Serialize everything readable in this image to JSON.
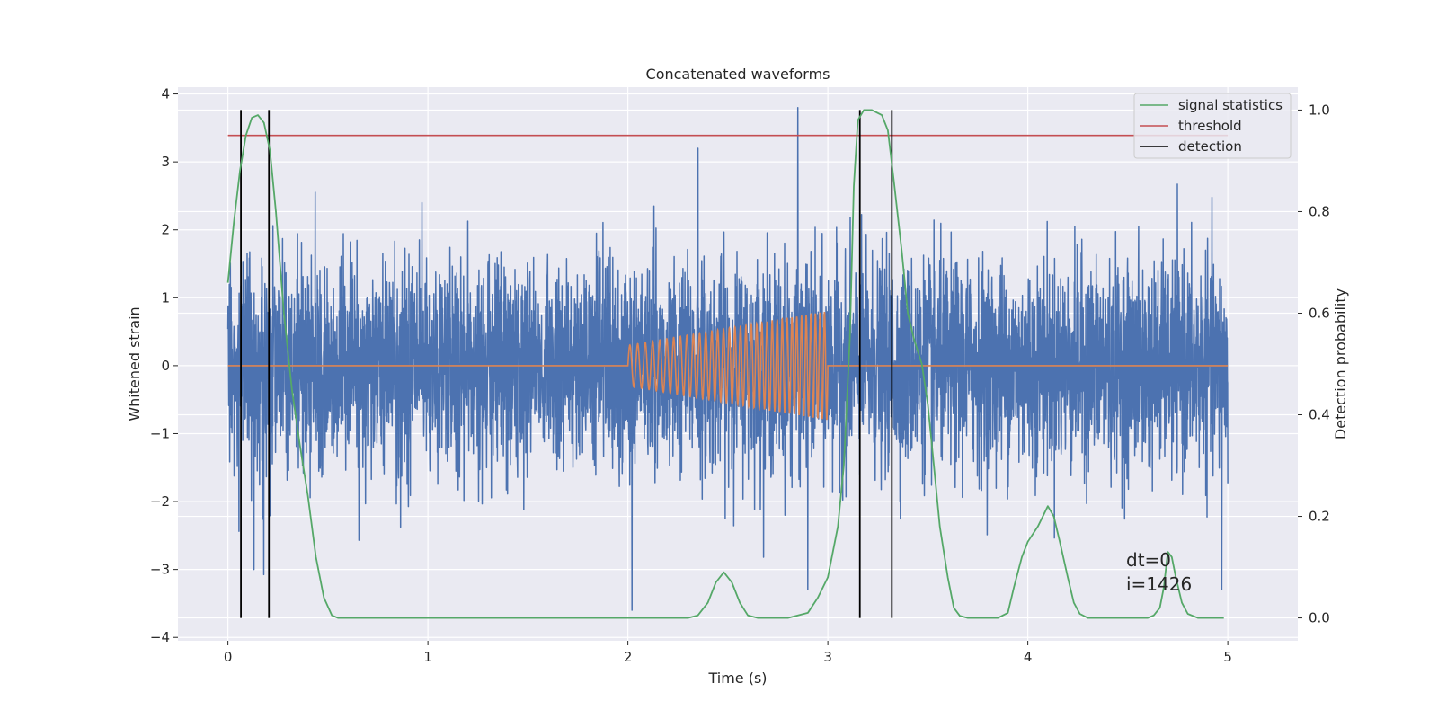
{
  "chart_data": {
    "type": "line",
    "title": "Concatenated waveforms",
    "xlabel": "Time (s)",
    "ylabel": "Whitened strain",
    "ylabel_right": "Detection probability",
    "xlim": [
      -0.25,
      5.35
    ],
    "ylim": [
      -4.05,
      4.1
    ],
    "ylim_right": [
      -0.045,
      1.045
    ],
    "x_ticks": [
      0,
      1,
      2,
      3,
      4,
      5
    ],
    "y_ticks": [
      -4,
      -3,
      -2,
      -1,
      0,
      1,
      2,
      3,
      4
    ],
    "y_ticks_right": [
      0.0,
      0.2,
      0.4,
      0.6,
      0.8,
      1.0
    ],
    "grid": true,
    "legend_position": "top-right",
    "colors": {
      "strain": "#4c72b0",
      "injection": "#dd8452",
      "signal_statistics": "#55a868",
      "threshold": "#c44e52",
      "detection": "#000000",
      "background": "#eaeaf2",
      "grid": "#ffffff"
    },
    "series": [
      {
        "name": "",
        "kind": "strain",
        "axis": "left",
        "x_range": [
          0,
          5
        ],
        "approx_amplitude_std": 0.75,
        "approx_peaks": [
          [
            0.13,
            -3.0
          ],
          [
            2.02,
            -3.6
          ],
          [
            2.13,
            2.35
          ],
          [
            2.35,
            3.2
          ],
          [
            2.85,
            3.8
          ],
          [
            2.9,
            -3.3
          ],
          [
            4.97,
            -3.3
          ]
        ]
      },
      {
        "name": "",
        "kind": "injection",
        "axis": "left",
        "x_range": [
          2.0,
          3.0
        ],
        "start_amplitude": 0.3,
        "end_amplitude": 0.8,
        "start_frequency_hz": 25,
        "end_frequency_hz": 45
      },
      {
        "name": "signal statistics",
        "kind": "detection_statistic",
        "axis": "right",
        "x": [
          0.0,
          0.03,
          0.06,
          0.09,
          0.12,
          0.15,
          0.18,
          0.21,
          0.24,
          0.28,
          0.32,
          0.36,
          0.4,
          0.44,
          0.48,
          0.52,
          0.55,
          0.6,
          0.8,
          1.0,
          1.5,
          2.0,
          2.3,
          2.35,
          2.4,
          2.44,
          2.48,
          2.52,
          2.56,
          2.6,
          2.65,
          2.8,
          2.9,
          2.95,
          3.0,
          3.05,
          3.08,
          3.11,
          3.13,
          3.15,
          3.18,
          3.22,
          3.27,
          3.3,
          3.33,
          3.37,
          3.4,
          3.43,
          3.47,
          3.5,
          3.53,
          3.56,
          3.6,
          3.63,
          3.66,
          3.7,
          3.75,
          3.85,
          3.9,
          3.93,
          3.97,
          4.0,
          4.05,
          4.1,
          4.13,
          4.16,
          4.2,
          4.23,
          4.26,
          4.3,
          4.4,
          4.6,
          4.63,
          4.66,
          4.68,
          4.7,
          4.72,
          4.74,
          4.77,
          4.8,
          4.85,
          4.98
        ],
        "values": [
          0.66,
          0.78,
          0.88,
          0.95,
          0.985,
          0.99,
          0.975,
          0.92,
          0.8,
          0.6,
          0.45,
          0.34,
          0.24,
          0.12,
          0.04,
          0.005,
          0.0,
          0.0,
          0.0,
          0.0,
          0.0,
          0.0,
          0.0,
          0.005,
          0.03,
          0.07,
          0.09,
          0.07,
          0.03,
          0.005,
          0.0,
          0.0,
          0.01,
          0.04,
          0.08,
          0.18,
          0.3,
          0.55,
          0.85,
          0.98,
          1.0,
          1.0,
          0.99,
          0.96,
          0.86,
          0.72,
          0.6,
          0.55,
          0.5,
          0.42,
          0.3,
          0.18,
          0.08,
          0.02,
          0.004,
          0.0,
          0.0,
          0.0,
          0.01,
          0.06,
          0.12,
          0.15,
          0.18,
          0.22,
          0.2,
          0.15,
          0.08,
          0.03,
          0.008,
          0.0,
          0.0,
          0.0,
          0.005,
          0.02,
          0.06,
          0.13,
          0.12,
          0.08,
          0.03,
          0.008,
          0.0,
          0.0
        ]
      },
      {
        "name": "threshold",
        "kind": "threshold",
        "axis": "right",
        "x": [
          0.0,
          5.0
        ],
        "values": [
          0.95,
          0.95
        ]
      },
      {
        "name": "detection",
        "kind": "detection",
        "axis": "right",
        "x_positions": [
          0.065,
          0.205,
          3.16,
          3.32
        ],
        "y_range": [
          0.0,
          1.0
        ]
      }
    ],
    "annotations": [
      "dt=0",
      "i=1426"
    ]
  }
}
